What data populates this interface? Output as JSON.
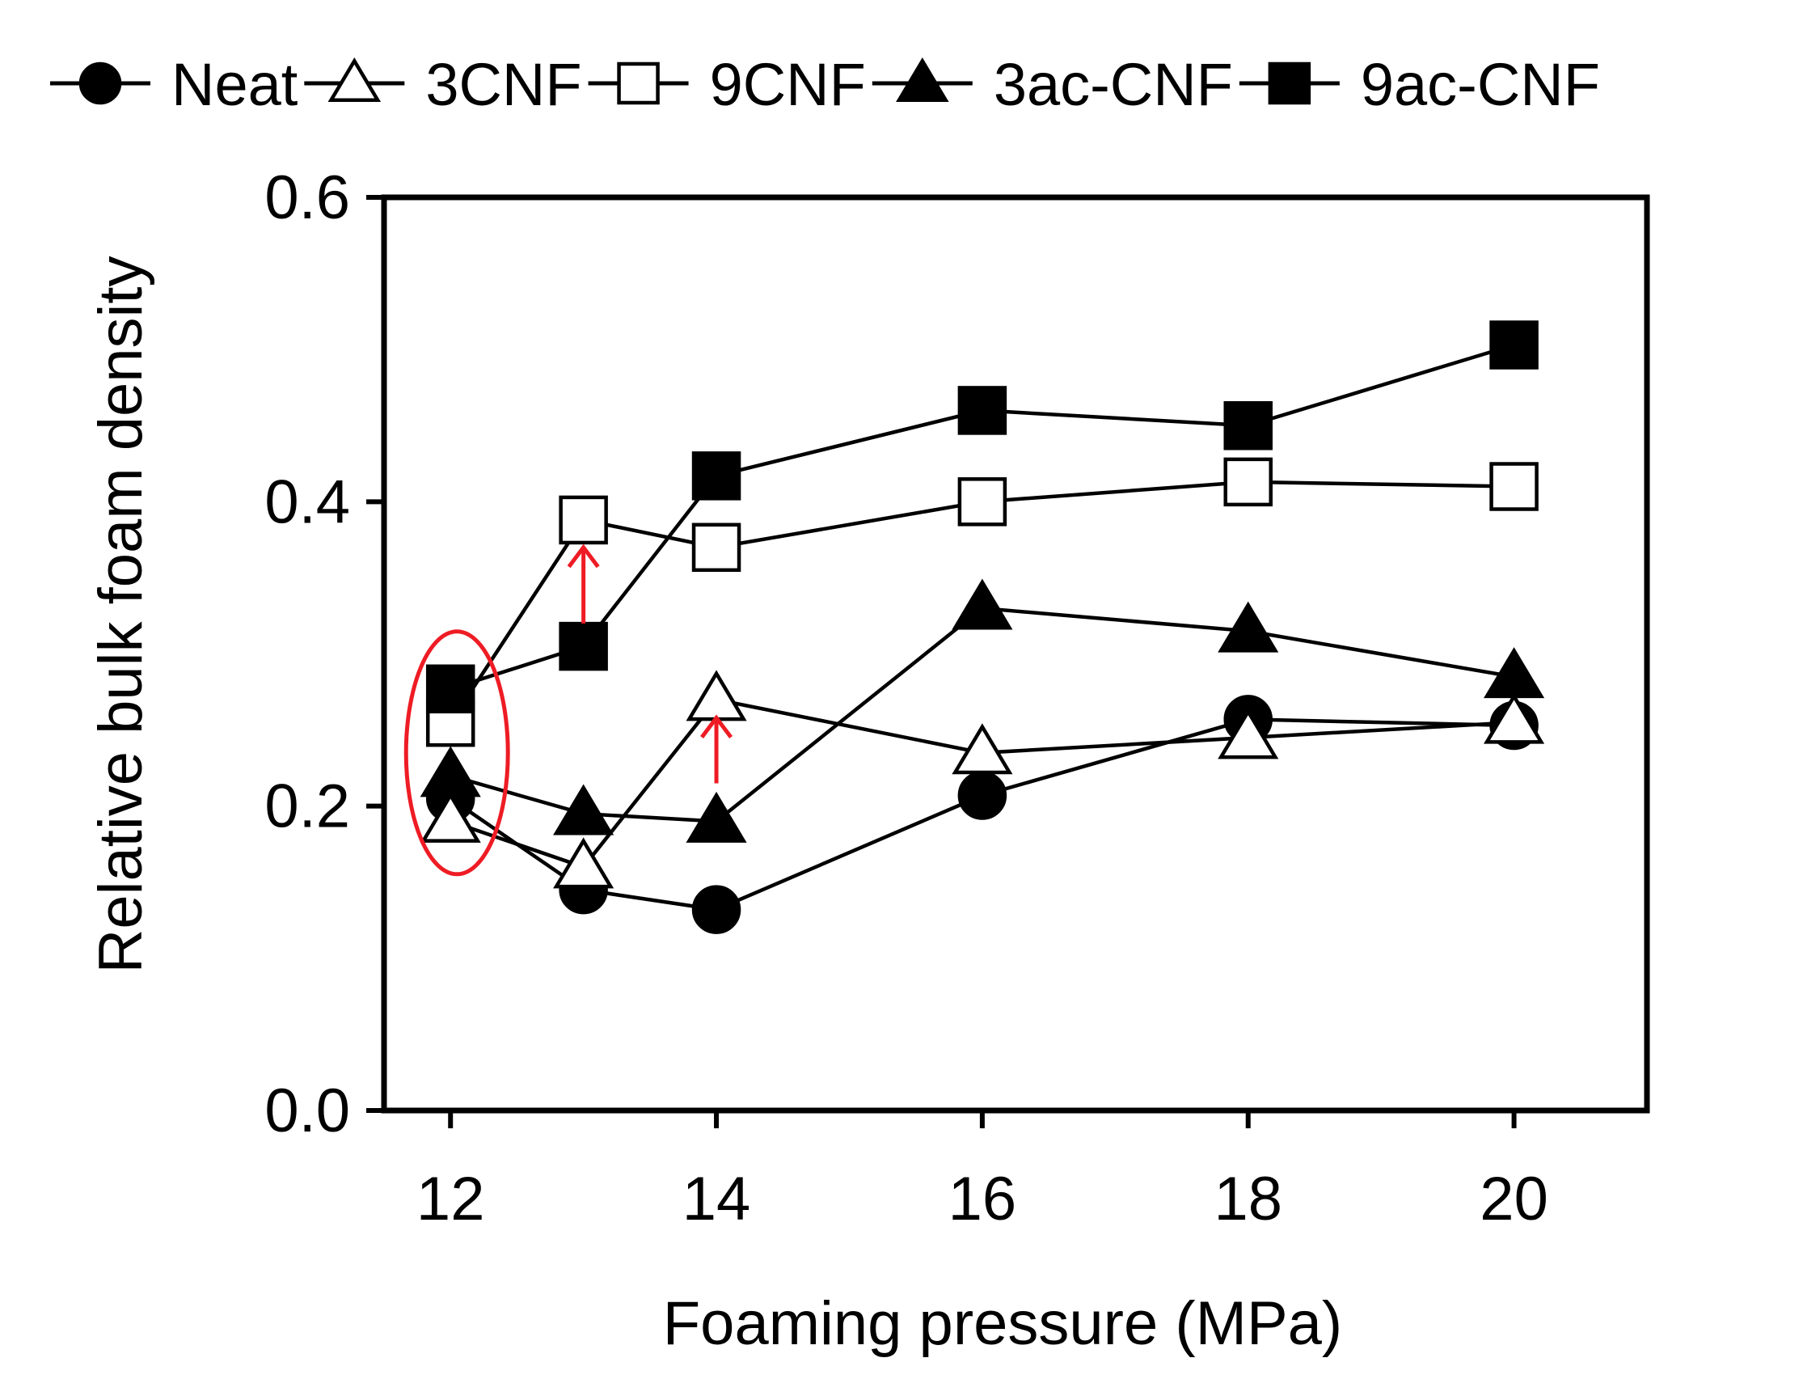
{
  "chart_data": {
    "type": "line",
    "title": "",
    "xlabel": "Foaming pressure (MPa)",
    "ylabel": "Relative bulk foam density",
    "x": [
      12,
      13,
      14,
      16,
      18,
      20
    ],
    "xticks": [
      "12",
      "14",
      "16",
      "18",
      "20"
    ],
    "xtick_values": [
      12,
      14,
      16,
      18,
      20
    ],
    "yticks": [
      "0.0",
      "0.2",
      "0.4",
      "0.6"
    ],
    "ytick_values": [
      0.0,
      0.2,
      0.4,
      0.6
    ],
    "xlim": [
      11.5,
      21.0
    ],
    "ylim": [
      0.0,
      0.6
    ],
    "grid": false,
    "legend_position": "top",
    "series": [
      {
        "name": "Neat",
        "marker": "circle-filled",
        "values": [
          0.205,
          0.145,
          0.132,
          0.207,
          0.257,
          0.253
        ]
      },
      {
        "name": "3CNF",
        "marker": "triangle-open",
        "values": [
          0.19,
          0.16,
          0.27,
          0.235,
          0.245,
          0.255
        ]
      },
      {
        "name": "9CNF",
        "marker": "square-open",
        "values": [
          0.255,
          0.388,
          0.37,
          0.4,
          0.413,
          0.41
        ]
      },
      {
        "name": "3ac-CNF",
        "marker": "triangle-filled",
        "values": [
          0.22,
          0.195,
          0.19,
          0.33,
          0.315,
          0.285
        ]
      },
      {
        "name": "9ac-CNF",
        "marker": "square-filled",
        "values": [
          0.277,
          0.305,
          0.417,
          0.46,
          0.45,
          0.503
        ]
      }
    ],
    "annotations": [
      {
        "type": "ellipse",
        "color": "#ee1c24",
        "x": 12,
        "y": 0.235,
        "note": "highlight at 12 MPa"
      },
      {
        "type": "arrow-up",
        "color": "#ee1c24",
        "x": 13,
        "from": 0.32,
        "to": 0.37
      },
      {
        "type": "arrow-up",
        "color": "#ee1c24",
        "x": 14,
        "from": 0.215,
        "to": 0.258
      }
    ]
  },
  "colors": {
    "line": "#000000",
    "annotation": "#ee1c24"
  }
}
